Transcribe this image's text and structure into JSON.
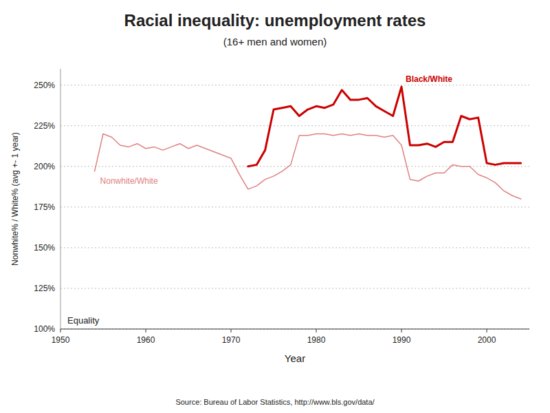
{
  "chart_data": {
    "type": "line",
    "title": "Racial inequality: unemployment rates",
    "subtitle": "(16+ men and women)",
    "x_label": "Year",
    "y_label": "Nonwhite% / White% (avg +- 1 year)",
    "source": "Source: Bureau of Labor Statistics,  http://www.bls.gov/data/",
    "annotations": [
      "Equality"
    ],
    "xlim": [
      1950,
      2005
    ],
    "xticks": [
      1950,
      1960,
      1970,
      1980,
      1990,
      2000
    ],
    "ylim": [
      100,
      260
    ],
    "yticks": [
      {
        "value": 100,
        "label": "100%"
      },
      {
        "value": 125,
        "label": "125%"
      },
      {
        "value": 150,
        "label": "150%"
      },
      {
        "value": 175,
        "label": "175%"
      },
      {
        "value": 200,
        "label": "200%"
      },
      {
        "value": 225,
        "label": "225%"
      },
      {
        "value": 250,
        "label": "250%"
      }
    ],
    "grid": true,
    "series": [
      {
        "name": "Nonwhite/White",
        "color": "#e08080",
        "x": [
          1954,
          1955,
          1956,
          1957,
          1958,
          1959,
          1960,
          1961,
          1962,
          1963,
          1964,
          1965,
          1966,
          1967,
          1968,
          1969,
          1970,
          1971,
          1972,
          1973,
          1974,
          1975,
          1976,
          1977,
          1978,
          1979,
          1980,
          1981,
          1982,
          1983,
          1984,
          1985,
          1986,
          1987,
          1988,
          1989,
          1990,
          1991,
          1992,
          1993,
          1994,
          1995,
          1996,
          1997,
          1998,
          1999,
          2000,
          2001,
          2002,
          2003,
          2004
        ],
        "values": [
          197,
          220,
          218,
          213,
          212,
          214,
          211,
          212,
          210,
          212,
          214,
          211,
          213,
          211,
          209,
          207,
          205,
          195,
          186,
          188,
          192,
          194,
          197,
          201,
          219,
          219,
          220,
          220,
          219,
          220,
          219,
          220,
          219,
          219,
          218,
          219,
          213,
          192,
          191,
          194,
          196,
          196,
          201,
          200,
          200,
          195,
          193,
          190,
          185,
          182,
          180
        ]
      },
      {
        "name": "Black/White",
        "color": "#cc0000",
        "x": [
          1972,
          1973,
          1974,
          1975,
          1976,
          1977,
          1978,
          1979,
          1980,
          1981,
          1982,
          1983,
          1984,
          1985,
          1986,
          1987,
          1988,
          1989,
          1990,
          1991,
          1992,
          1993,
          1994,
          1995,
          1996,
          1997,
          1998,
          1999,
          2000,
          2001,
          2002,
          2003,
          2004
        ],
        "values": [
          200,
          201,
          210,
          235,
          236,
          237,
          231,
          235,
          237,
          236,
          238,
          247,
          241,
          241,
          242,
          237,
          234,
          231,
          249,
          213,
          213,
          214,
          212,
          215,
          215,
          231,
          229,
          230,
          202,
          201,
          202,
          202,
          202
        ]
      }
    ]
  }
}
